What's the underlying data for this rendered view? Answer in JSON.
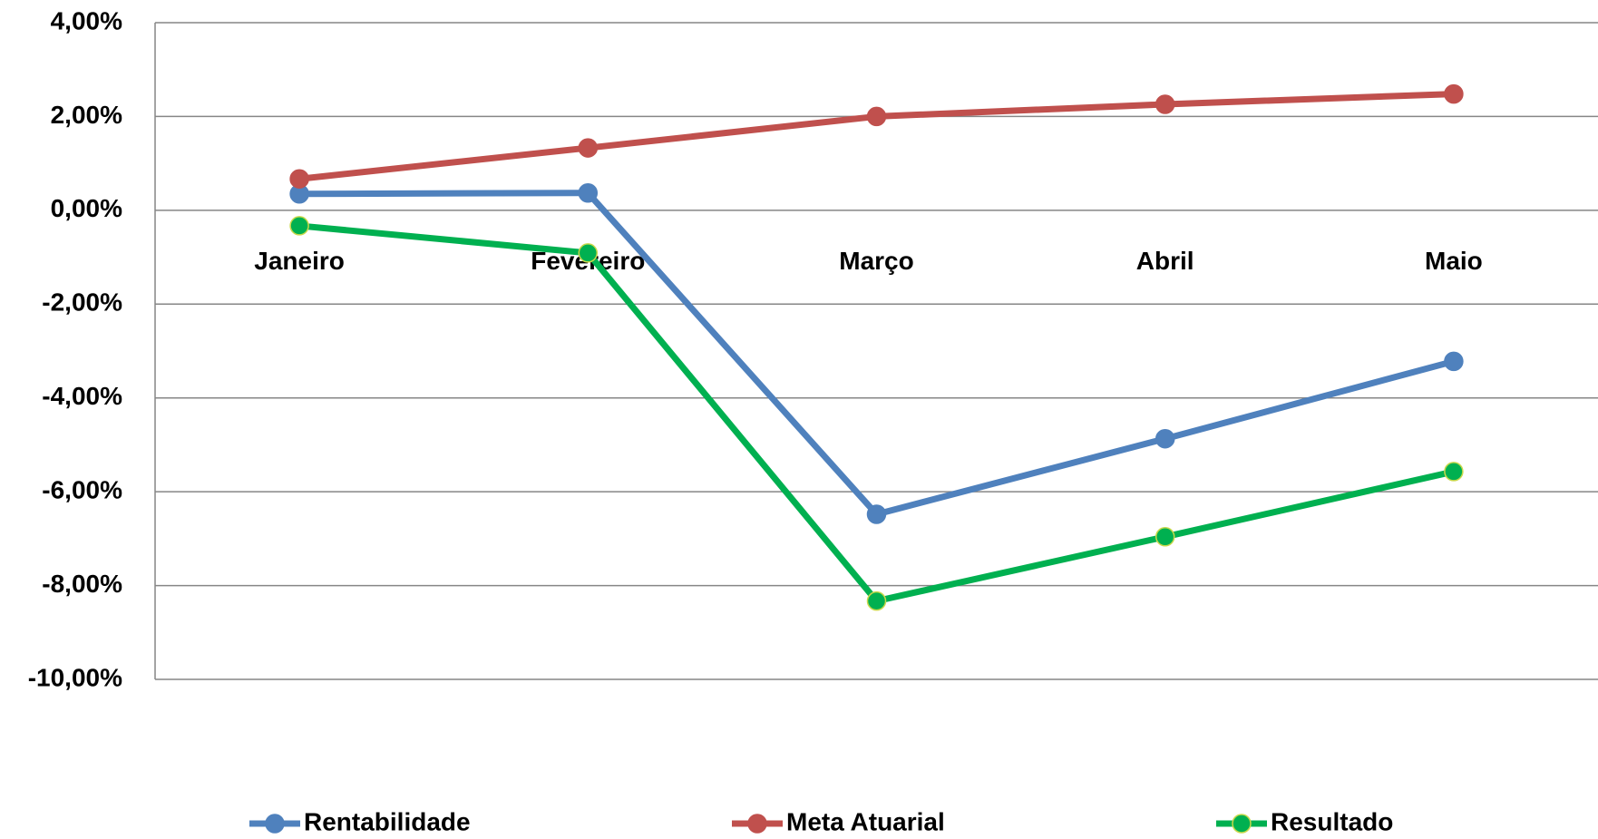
{
  "chart_data": {
    "type": "line",
    "categories": [
      "Janeiro",
      "Fevereiro",
      "Março",
      "Abril",
      "Maio"
    ],
    "series": [
      {
        "name": "Rentabilidade",
        "color": "#4f81bd",
        "values": [
          0.35,
          0.37,
          -6.48,
          -4.87,
          -3.22
        ]
      },
      {
        "name": "Meta Atuarial",
        "color": "#c0504d",
        "values": [
          0.67,
          1.33,
          2.0,
          2.26,
          2.48
        ]
      },
      {
        "name": "Resultado",
        "color": "#00b050",
        "values": [
          -0.33,
          -0.91,
          -8.33,
          -6.96,
          -5.57
        ]
      }
    ],
    "ylim": [
      -10,
      4
    ],
    "yticks": [
      {
        "value": -10,
        "label": "-10,00%"
      },
      {
        "value": -8,
        "label": "-8,00%"
      },
      {
        "value": -6,
        "label": "-6,00%"
      },
      {
        "value": -4,
        "label": "-4,00%"
      },
      {
        "value": -2,
        "label": "-2,00%"
      },
      {
        "value": 0,
        "label": "0,00%"
      },
      {
        "value": 2,
        "label": "2,00%"
      },
      {
        "value": 4,
        "label": "4,00%"
      }
    ],
    "grid": true,
    "legend": "bottom"
  }
}
